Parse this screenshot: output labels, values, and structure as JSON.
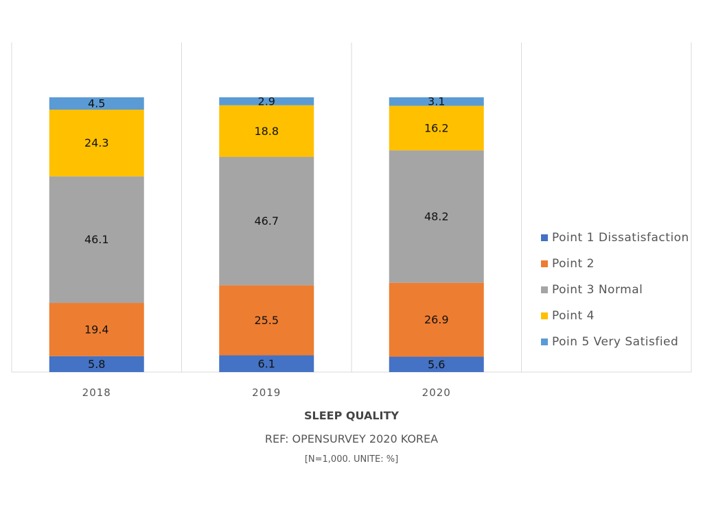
{
  "chart_data": {
    "type": "bar",
    "stacked": true,
    "categories": [
      "2018",
      "2019",
      "2020"
    ],
    "series": [
      {
        "name": "Point 1 Dissatisfaction",
        "color": "#4472C4",
        "values": [
          5.8,
          6.1,
          5.6
        ]
      },
      {
        "name": "Point 2",
        "color": "#ED7D31",
        "values": [
          19.4,
          25.5,
          26.9
        ]
      },
      {
        "name": "Point 3 Normal",
        "color": "#A5A5A5",
        "values": [
          46.1,
          46.7,
          48.2
        ]
      },
      {
        "name": "Point 4",
        "color": "#FFC000",
        "values": [
          24.3,
          18.8,
          16.2
        ]
      },
      {
        "name": "Poin 5 Very Satisfied",
        "color": "#5B9BD5",
        "values": [
          4.5,
          2.9,
          3.1
        ]
      }
    ],
    "ylim": [
      0,
      100
    ],
    "grid": true,
    "legend_position": "right"
  },
  "captions": {
    "title": "SLEEP QUALITY",
    "ref": "REF: OPENSURVEY 2020 KOREA",
    "note": "[N=1,000. UNITE: %]"
  }
}
